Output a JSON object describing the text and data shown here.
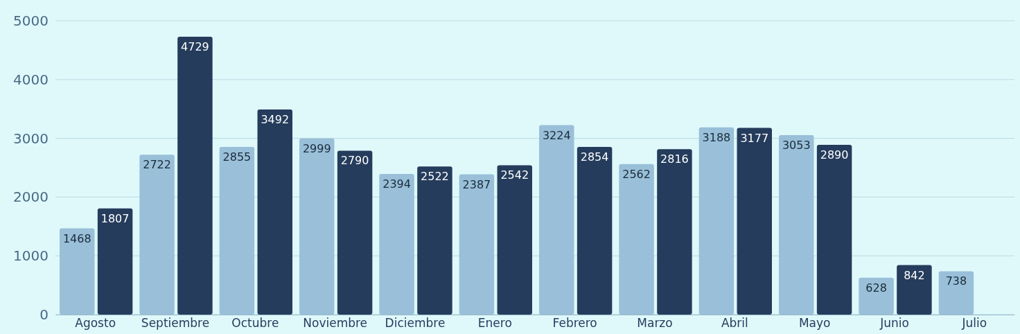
{
  "chart_data": {
    "type": "bar",
    "categories": [
      "Agosto",
      "Septiembre",
      "Octubre",
      "Noviembre",
      "Diciembre",
      "Enero",
      "Febrero",
      "Marzo",
      "Abril",
      "Mayo",
      "Junio",
      "Julio"
    ],
    "series": [
      {
        "color": "#99c0d8",
        "values": [
          1468,
          2722,
          2855,
          2999,
          2394,
          2387,
          3224,
          2562,
          3188,
          3053,
          628,
          738
        ]
      },
      {
        "color": "#253c5c",
        "values": [
          1807,
          4729,
          3492,
          2790,
          2522,
          2542,
          2854,
          2816,
          3177,
          2890,
          842,
          null
        ]
      }
    ],
    "ylim": [
      0,
      5000
    ],
    "yticks": [
      0,
      1000,
      2000,
      3000,
      4000,
      5000
    ],
    "grid": "y",
    "data_labels": true
  }
}
